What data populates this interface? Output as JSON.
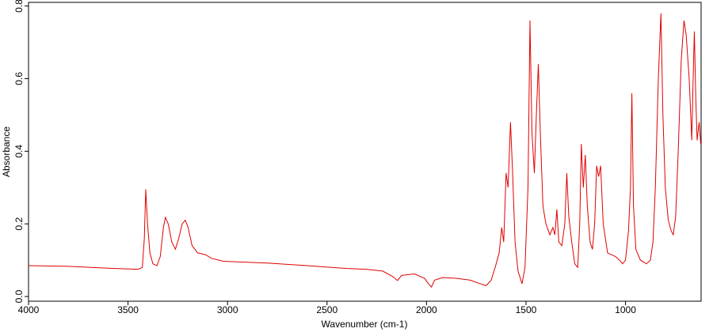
{
  "chart_data": {
    "type": "line",
    "x_label": "Wavenumber (cm-1)",
    "y_label": "Absorbance",
    "color": "#e00000",
    "xlim": [
      4000,
      620
    ],
    "ylim": [
      -0.013,
      0.81
    ],
    "xticks": [
      4000,
      3500,
      3000,
      2500,
      2000,
      1500,
      1000
    ],
    "yticks": [
      {
        "value": 0,
        "label": "0.0"
      },
      0.2,
      0.4,
      0.6,
      0.8
    ],
    "x": [
      4000,
      3800,
      3600,
      3450,
      3428,
      3418,
      3411,
      3402,
      3390,
      3375,
      3355,
      3338,
      3322,
      3312,
      3298,
      3280,
      3262,
      3245,
      3228,
      3212,
      3198,
      3178,
      3150,
      3110,
      3080,
      3020,
      2800,
      2600,
      2400,
      2300,
      2220,
      2170,
      2146,
      2125,
      2060,
      2010,
      1990,
      1975,
      1960,
      1920,
      1850,
      1780,
      1730,
      1700,
      1675,
      1655,
      1635,
      1622,
      1612,
      1600,
      1590,
      1578,
      1568,
      1555,
      1540,
      1520,
      1505,
      1490,
      1480,
      1470,
      1458,
      1448,
      1438,
      1428,
      1415,
      1400,
      1380,
      1365,
      1355,
      1345,
      1335,
      1320,
      1305,
      1295,
      1285,
      1270,
      1255,
      1240,
      1230,
      1222,
      1212,
      1202,
      1192,
      1178,
      1166,
      1155,
      1145,
      1135,
      1125,
      1112,
      1090,
      1050,
      1030,
      1015,
      1000,
      985,
      975,
      968,
      960,
      948,
      925,
      895,
      875,
      862,
      850,
      835,
      822,
      812,
      800,
      785,
      770,
      760,
      748,
      735,
      720,
      706,
      695,
      680,
      667,
      660,
      654,
      647,
      640,
      630,
      622
    ],
    "values": [
      0.085,
      0.083,
      0.078,
      0.075,
      0.08,
      0.16,
      0.295,
      0.2,
      0.12,
      0.09,
      0.085,
      0.11,
      0.19,
      0.218,
      0.2,
      0.15,
      0.13,
      0.16,
      0.2,
      0.21,
      0.19,
      0.14,
      0.12,
      0.115,
      0.105,
      0.097,
      0.092,
      0.085,
      0.077,
      0.075,
      0.07,
      0.055,
      0.044,
      0.058,
      0.062,
      0.05,
      0.035,
      0.026,
      0.045,
      0.052,
      0.05,
      0.045,
      0.035,
      0.03,
      0.045,
      0.08,
      0.12,
      0.19,
      0.15,
      0.34,
      0.3,
      0.48,
      0.35,
      0.15,
      0.07,
      0.035,
      0.08,
      0.3,
      0.76,
      0.45,
      0.34,
      0.5,
      0.64,
      0.45,
      0.25,
      0.2,
      0.17,
      0.19,
      0.17,
      0.24,
      0.15,
      0.14,
      0.2,
      0.34,
      0.22,
      0.15,
      0.09,
      0.08,
      0.2,
      0.42,
      0.3,
      0.39,
      0.25,
      0.15,
      0.13,
      0.2,
      0.36,
      0.33,
      0.36,
      0.2,
      0.12,
      0.11,
      0.1,
      0.09,
      0.1,
      0.18,
      0.3,
      0.56,
      0.25,
      0.13,
      0.1,
      0.09,
      0.1,
      0.15,
      0.3,
      0.6,
      0.78,
      0.5,
      0.3,
      0.21,
      0.18,
      0.17,
      0.22,
      0.4,
      0.65,
      0.76,
      0.72,
      0.6,
      0.43,
      0.6,
      0.73,
      0.55,
      0.43,
      0.48,
      0.42
    ]
  }
}
